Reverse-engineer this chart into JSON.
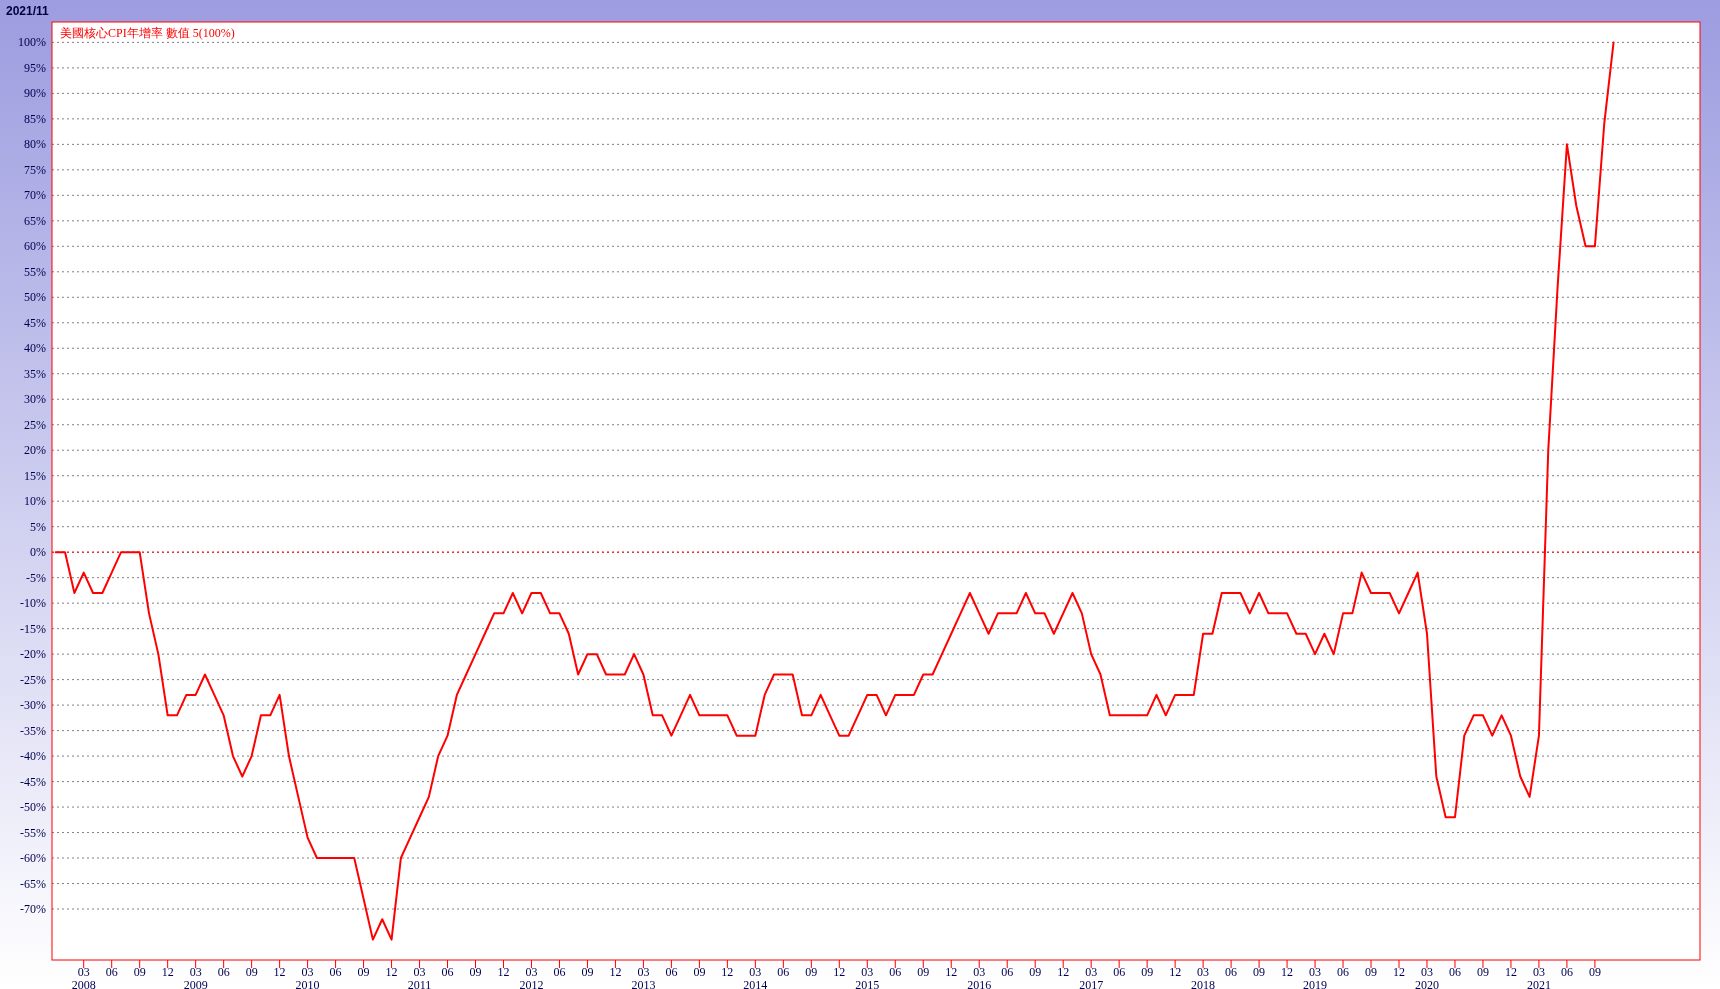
{
  "chart_data": {
    "type": "line",
    "subtitle": "2021/11",
    "title": "美國核心CPI年增率 數值 5(100%)",
    "x": [
      "2007-12",
      "2008-01",
      "2008-02",
      "2008-03",
      "2008-04",
      "2008-05",
      "2008-06",
      "2008-07",
      "2008-08",
      "2008-09",
      "2008-10",
      "2008-11",
      "2008-12",
      "2009-01",
      "2009-02",
      "2009-03",
      "2009-04",
      "2009-05",
      "2009-06",
      "2009-07",
      "2009-08",
      "2009-09",
      "2009-10",
      "2009-11",
      "2009-12",
      "2010-01",
      "2010-02",
      "2010-03",
      "2010-04",
      "2010-05",
      "2010-06",
      "2010-07",
      "2010-08",
      "2010-09",
      "2010-10",
      "2010-11",
      "2010-12",
      "2011-01",
      "2011-02",
      "2011-03",
      "2011-04",
      "2011-05",
      "2011-06",
      "2011-07",
      "2011-08",
      "2011-09",
      "2011-10",
      "2011-11",
      "2011-12",
      "2012-01",
      "2012-02",
      "2012-03",
      "2012-04",
      "2012-05",
      "2012-06",
      "2012-07",
      "2012-08",
      "2012-09",
      "2012-10",
      "2012-11",
      "2012-12",
      "2013-01",
      "2013-02",
      "2013-03",
      "2013-04",
      "2013-05",
      "2013-06",
      "2013-07",
      "2013-08",
      "2013-09",
      "2013-10",
      "2013-11",
      "2013-12",
      "2014-01",
      "2014-02",
      "2014-03",
      "2014-04",
      "2014-05",
      "2014-06",
      "2014-07",
      "2014-08",
      "2014-09",
      "2014-10",
      "2014-11",
      "2014-12",
      "2015-01",
      "2015-02",
      "2015-03",
      "2015-04",
      "2015-05",
      "2015-06",
      "2015-07",
      "2015-08",
      "2015-09",
      "2015-10",
      "2015-11",
      "2015-12",
      "2016-01",
      "2016-02",
      "2016-03",
      "2016-04",
      "2016-05",
      "2016-06",
      "2016-07",
      "2016-08",
      "2016-09",
      "2016-10",
      "2016-11",
      "2016-12",
      "2017-01",
      "2017-02",
      "2017-03",
      "2017-04",
      "2017-05",
      "2017-06",
      "2017-07",
      "2017-08",
      "2017-09",
      "2017-10",
      "2017-11",
      "2017-12",
      "2018-01",
      "2018-02",
      "2018-03",
      "2018-04",
      "2018-05",
      "2018-06",
      "2018-07",
      "2018-08",
      "2018-09",
      "2018-10",
      "2018-11",
      "2018-12",
      "2019-01",
      "2019-02",
      "2019-03",
      "2019-04",
      "2019-05",
      "2019-06",
      "2019-07",
      "2019-08",
      "2019-09",
      "2019-10",
      "2019-11",
      "2019-12",
      "2020-01",
      "2020-02",
      "2020-03",
      "2020-04",
      "2020-05",
      "2020-06",
      "2020-07",
      "2020-08",
      "2020-09",
      "2020-10",
      "2020-11",
      "2020-12",
      "2021-01",
      "2021-02",
      "2021-03",
      "2021-04",
      "2021-05",
      "2021-06",
      "2021-07",
      "2021-08",
      "2021-09",
      "2021-10",
      "2021-11"
    ],
    "series": [
      {
        "color": "#ff0000",
        "values": [
          0,
          0,
          -8,
          -4,
          -8,
          -8,
          -4,
          0,
          0,
          0,
          -12,
          -20,
          -32,
          -32,
          -28,
          -28,
          -24,
          -28,
          -32,
          -40,
          -44,
          -40,
          -32,
          -32,
          -28,
          -40,
          -48,
          -56,
          -60,
          -60,
          -60,
          -60,
          -60,
          -68,
          -76,
          -72,
          -76,
          -60,
          -56,
          -52,
          -48,
          -40,
          -36,
          -28,
          -24,
          -20,
          -16,
          -12,
          -12,
          -8,
          -12,
          -8,
          -8,
          -12,
          -12,
          -16,
          -24,
          -20,
          -20,
          -24,
          -24,
          -24,
          -20,
          -24,
          -32,
          -32,
          -36,
          -32,
          -28,
          -32,
          -32,
          -32,
          -32,
          -36,
          -36,
          -36,
          -28,
          -24,
          -24,
          -24,
          -32,
          -32,
          -28,
          -32,
          -36,
          -36,
          -32,
          -28,
          -28,
          -32,
          -28,
          -28,
          -28,
          -24,
          -24,
          -20,
          -16,
          -12,
          -8,
          -12,
          -16,
          -12,
          -12,
          -12,
          -8,
          -12,
          -12,
          -16,
          -12,
          -8,
          -12,
          -20,
          -24,
          -32,
          -32,
          -32,
          -32,
          -32,
          -28,
          -32,
          -28,
          -28,
          -28,
          -16,
          -16,
          -8,
          -8,
          -8,
          -12,
          -8,
          -12,
          -12,
          -12,
          -16,
          -16,
          -20,
          -16,
          -20,
          -12,
          -12,
          -4,
          -8,
          -8,
          -8,
          -12,
          -8,
          -4,
          -16,
          -44,
          -52,
          -52,
          -36,
          -32,
          -32,
          -36,
          -32,
          -36,
          -44,
          -48,
          -36,
          20,
          52,
          80,
          68,
          60,
          60,
          84,
          100
        ]
      }
    ],
    "xlim": [
      "2007-11-19",
      "2022-08-09"
    ],
    "xticks": [
      {
        "value": "2008-03",
        "label": "03\n2008"
      },
      {
        "value": "2008-06",
        "label": "06"
      },
      {
        "value": "2008-09",
        "label": "09"
      },
      {
        "value": "2008-12",
        "label": "12"
      },
      {
        "value": "2009-03",
        "label": "03\n2009"
      },
      {
        "value": "2009-06",
        "label": "06"
      },
      {
        "value": "2009-09",
        "label": "09"
      },
      {
        "value": "2009-12",
        "label": "12"
      },
      {
        "value": "2010-03",
        "label": "03\n2010"
      },
      {
        "value": "2010-06",
        "label": "06"
      },
      {
        "value": "2010-09",
        "label": "09"
      },
      {
        "value": "2010-12",
        "label": "12"
      },
      {
        "value": "2011-03",
        "label": "03\n2011"
      },
      {
        "value": "2011-06",
        "label": "06"
      },
      {
        "value": "2011-09",
        "label": "09"
      },
      {
        "value": "2011-12",
        "label": "12"
      },
      {
        "value": "2012-03",
        "label": "03\n2012"
      },
      {
        "value": "2012-06",
        "label": "06"
      },
      {
        "value": "2012-09",
        "label": "09"
      },
      {
        "value": "2012-12",
        "label": "12"
      },
      {
        "value": "2013-03",
        "label": "03\n2013"
      },
      {
        "value": "2013-06",
        "label": "06"
      },
      {
        "value": "2013-09",
        "label": "09"
      },
      {
        "value": "2013-12",
        "label": "12"
      },
      {
        "value": "2014-03",
        "label": "03\n2014"
      },
      {
        "value": "2014-06",
        "label": "06"
      },
      {
        "value": "2014-09",
        "label": "09"
      },
      {
        "value": "2014-12",
        "label": "12"
      },
      {
        "value": "2015-03",
        "label": "03\n2015"
      },
      {
        "value": "2015-06",
        "label": "06"
      },
      {
        "value": "2015-09",
        "label": "09"
      },
      {
        "value": "2015-12",
        "label": "12"
      },
      {
        "value": "2016-03",
        "label": "03\n2016"
      },
      {
        "value": "2016-06",
        "label": "06"
      },
      {
        "value": "2016-09",
        "label": "09"
      },
      {
        "value": "2016-12",
        "label": "12"
      },
      {
        "value": "2017-03",
        "label": "03\n2017"
      },
      {
        "value": "2017-06",
        "label": "06"
      },
      {
        "value": "2017-09",
        "label": "09"
      },
      {
        "value": "2017-12",
        "label": "12"
      },
      {
        "value": "2018-03",
        "label": "03\n2018"
      },
      {
        "value": "2018-06",
        "label": "06"
      },
      {
        "value": "2018-09",
        "label": "09"
      },
      {
        "value": "2018-12",
        "label": "12"
      },
      {
        "value": "2019-03",
        "label": "03\n2019"
      },
      {
        "value": "2019-06",
        "label": "06"
      },
      {
        "value": "2019-09",
        "label": "09"
      },
      {
        "value": "2019-12",
        "label": "12"
      },
      {
        "value": "2020-03",
        "label": "03\n2020"
      },
      {
        "value": "2020-06",
        "label": "06"
      },
      {
        "value": "2020-09",
        "label": "09"
      },
      {
        "value": "2020-12",
        "label": "12"
      },
      {
        "value": "2021-03",
        "label": "03\n2021"
      },
      {
        "value": "2021-06",
        "label": "06"
      },
      {
        "value": "2021-09",
        "label": "09"
      }
    ],
    "ylim": [
      -80,
      104
    ],
    "yticks": [
      {
        "value": 100,
        "label": "100%"
      },
      {
        "value": 95,
        "label": "95%"
      },
      {
        "value": 90,
        "label": "90%"
      },
      {
        "value": 85,
        "label": "85%"
      },
      {
        "value": 80,
        "label": "80%"
      },
      {
        "value": 75,
        "label": "75%"
      },
      {
        "value": 70,
        "label": "70%"
      },
      {
        "value": 65,
        "label": "65%"
      },
      {
        "value": 60,
        "label": "60%"
      },
      {
        "value": 55,
        "label": "55%"
      },
      {
        "value": 50,
        "label": "50%"
      },
      {
        "value": 45,
        "label": "45%"
      },
      {
        "value": 40,
        "label": "40%"
      },
      {
        "value": 35,
        "label": "35%"
      },
      {
        "value": 30,
        "label": "30%"
      },
      {
        "value": 25,
        "label": "25%"
      },
      {
        "value": 20,
        "label": "20%"
      },
      {
        "value": 15,
        "label": "15%"
      },
      {
        "value": 10,
        "label": "10%"
      },
      {
        "value": 5,
        "label": "5%"
      },
      {
        "value": 0,
        "label": "0%"
      },
      {
        "value": -5,
        "label": "-5%"
      },
      {
        "value": -10,
        "label": "-10%"
      },
      {
        "value": -15,
        "label": "-15%"
      },
      {
        "value": -20,
        "label": "-20%"
      },
      {
        "value": -25,
        "label": "-25%"
      },
      {
        "value": -30,
        "label": "-30%"
      },
      {
        "value": -35,
        "label": "-35%"
      },
      {
        "value": -40,
        "label": "-40%"
      },
      {
        "value": -45,
        "label": "-45%"
      },
      {
        "value": -50,
        "label": "-50%"
      },
      {
        "value": -55,
        "label": "-55%"
      },
      {
        "value": -60,
        "label": "-60%"
      },
      {
        "value": -65,
        "label": "-65%"
      },
      {
        "value": -70,
        "label": "-70%"
      }
    ],
    "grid": "y",
    "ref_lines": [
      {
        "axis": "y",
        "value": 0,
        "color": "#ff0000",
        "line_style": "dotted"
      }
    ]
  }
}
